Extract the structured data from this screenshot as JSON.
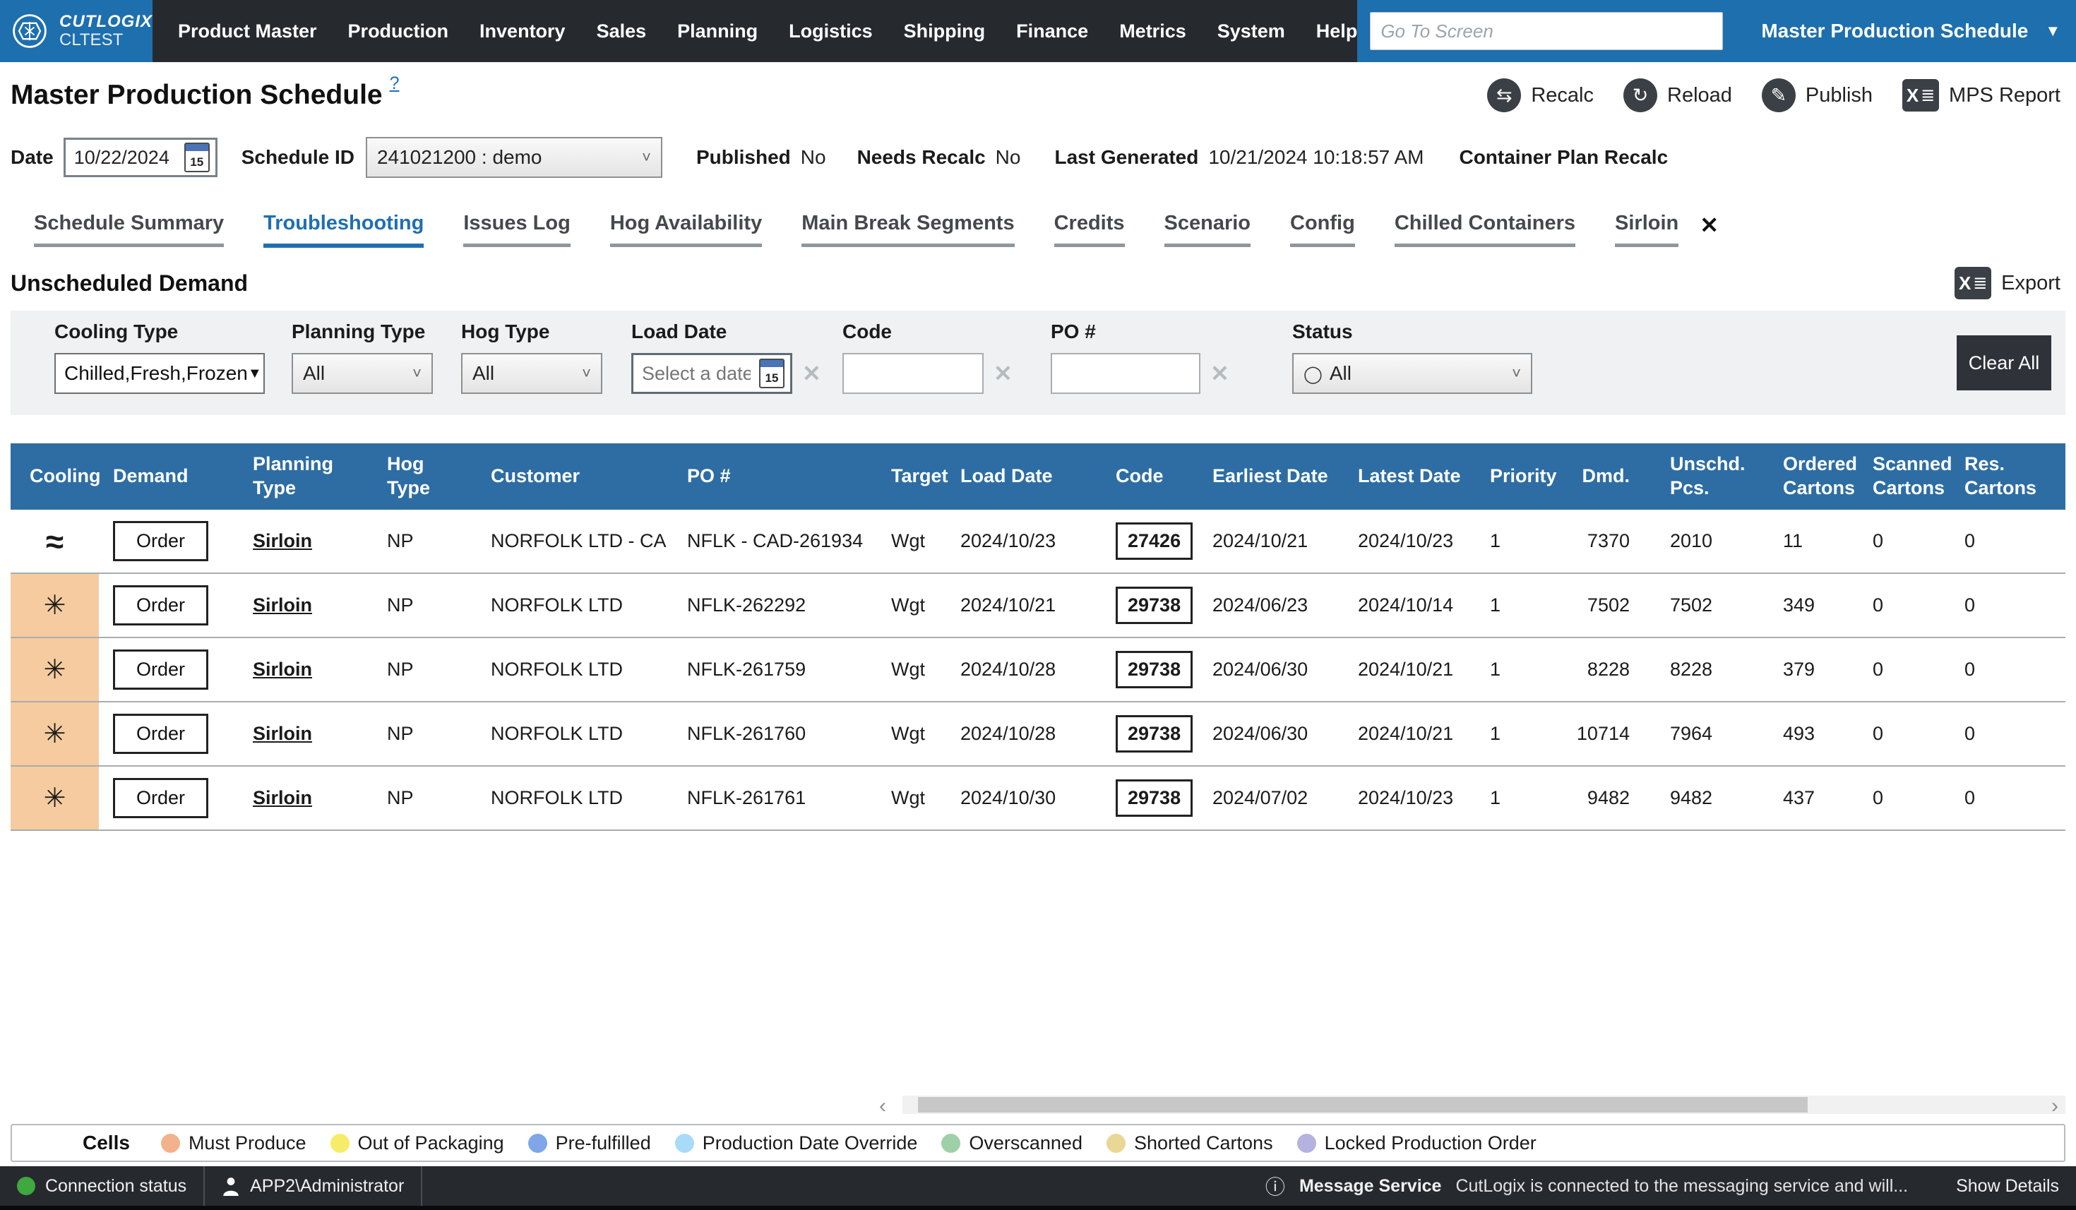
{
  "colors": {
    "accent_blue": "#1d6fae",
    "table_header_blue": "#2d6da3",
    "nav_dark": "#26292e",
    "must_produce_row": "#f6cb9f"
  },
  "icons": {
    "close": "✕",
    "back": "←",
    "forward": "→",
    "star": "☆",
    "caret_down": "▼",
    "caret_small": "˅",
    "scroll_left": "‹",
    "scroll_right": "›",
    "info": "ⓘ",
    "help": "?",
    "excel_x": "X",
    "excel_lines": "≣",
    "recalc": "⇆",
    "reload": "↻",
    "publish": "✎",
    "chilled": "≈",
    "frozen": "✳",
    "status_circle": "◯"
  },
  "nav": {
    "brand_name": "CUTLOGIX",
    "brand_env": "CLTEST",
    "items": [
      "Product Master",
      "Production",
      "Inventory",
      "Sales",
      "Planning",
      "Logistics",
      "Shipping",
      "Finance",
      "Metrics",
      "System",
      "Help"
    ],
    "goto_placeholder": "Go To Screen",
    "screen_selector": "Master Production Schedule"
  },
  "header": {
    "title": "Master Production Schedule",
    "actions": [
      {
        "label": "Recalc",
        "icon": "recalc"
      },
      {
        "label": "Reload",
        "icon": "reload"
      },
      {
        "label": "Publish",
        "icon": "publish"
      },
      {
        "label": "MPS Report",
        "icon": "excel"
      }
    ]
  },
  "schedule_bar": {
    "date_label": "Date",
    "date_value": "10/22/2024",
    "calendar_day": "15",
    "schedule_id_label": "Schedule ID",
    "schedule_id_value": "241021200 :  demo",
    "published_label": "Published",
    "published_value": "No",
    "needs_recalc_label": "Needs Recalc",
    "needs_recalc_value": "No",
    "last_generated_label": "Last Generated",
    "last_generated_value": "10/21/2024 10:18:57 AM",
    "container_plan_label": "Container Plan Recalc"
  },
  "tabs": [
    {
      "label": "Schedule Summary"
    },
    {
      "label": "Troubleshooting",
      "active": true
    },
    {
      "label": "Issues Log"
    },
    {
      "label": "Hog Availability"
    },
    {
      "label": "Main Break Segments"
    },
    {
      "label": "Credits"
    },
    {
      "label": "Scenario"
    },
    {
      "label": "Config"
    },
    {
      "label": "Chilled Containers"
    },
    {
      "label": "Sirloin",
      "closable": true
    }
  ],
  "section": {
    "title": "Unscheduled Demand",
    "export_label": "Export"
  },
  "filters": {
    "cooling_type": {
      "label": "Cooling Type",
      "value": "Chilled,Fresh,Frozen"
    },
    "planning_type": {
      "label": "Planning Type",
      "value": "All"
    },
    "hog_type": {
      "label": "Hog Type",
      "value": "All"
    },
    "load_date": {
      "label": "Load Date",
      "placeholder": "Select a date",
      "calendar_day": "15"
    },
    "code": {
      "label": "Code",
      "value": ""
    },
    "po": {
      "label": "PO #",
      "value": ""
    },
    "status": {
      "label": "Status",
      "value": "All"
    },
    "clear_all_label": "Clear All"
  },
  "table": {
    "columns": [
      "Cooling",
      "Demand",
      "Planning Type",
      "Hog Type",
      "Customer",
      "PO #",
      "Target",
      "Load Date",
      "Code",
      "Earliest Date",
      "Latest Date",
      "Priority",
      "Dmd.",
      "Unschd.\nPcs.",
      "Ordered\nCartons",
      "Scanned\nCartons",
      "Res.\nCartons"
    ],
    "rows": [
      {
        "cooling": "chilled",
        "must_produce": false,
        "demand": "Order",
        "planning_type": "Sirloin",
        "hog_type": "NP",
        "customer": "NORFOLK LTD - CA",
        "po": "NFLK - CAD-261934",
        "target": "Wgt",
        "load_date": "2024/10/23",
        "code": "27426",
        "earliest_date": "2024/10/21",
        "latest_date": "2024/10/23",
        "priority": "1",
        "dmd": "7370",
        "unschd_pcs": "2010",
        "ordered_cartons": "11",
        "scanned_cartons": "0",
        "res_cartons": "0"
      },
      {
        "cooling": "frozen",
        "must_produce": true,
        "demand": "Order",
        "planning_type": "Sirloin",
        "hog_type": "NP",
        "customer": "NORFOLK LTD",
        "po": "NFLK-262292",
        "target": "Wgt",
        "load_date": "2024/10/21",
        "code": "29738",
        "earliest_date": "2024/06/23",
        "latest_date": "2024/10/14",
        "priority": "1",
        "dmd": "7502",
        "unschd_pcs": "7502",
        "ordered_cartons": "349",
        "scanned_cartons": "0",
        "res_cartons": "0"
      },
      {
        "cooling": "frozen",
        "must_produce": true,
        "demand": "Order",
        "planning_type": "Sirloin",
        "hog_type": "NP",
        "customer": "NORFOLK LTD",
        "po": "NFLK-261759",
        "target": "Wgt",
        "load_date": "2024/10/28",
        "code": "29738",
        "earliest_date": "2024/06/30",
        "latest_date": "2024/10/21",
        "priority": "1",
        "dmd": "8228",
        "unschd_pcs": "8228",
        "ordered_cartons": "379",
        "scanned_cartons": "0",
        "res_cartons": "0"
      },
      {
        "cooling": "frozen",
        "must_produce": true,
        "demand": "Order",
        "planning_type": "Sirloin",
        "hog_type": "NP",
        "customer": "NORFOLK LTD",
        "po": "NFLK-261760",
        "target": "Wgt",
        "load_date": "2024/10/28",
        "code": "29738",
        "earliest_date": "2024/06/30",
        "latest_date": "2024/10/21",
        "priority": "1",
        "dmd": "10714",
        "unschd_pcs": "7964",
        "ordered_cartons": "493",
        "scanned_cartons": "0",
        "res_cartons": "0"
      },
      {
        "cooling": "frozen",
        "must_produce": true,
        "demand": "Order",
        "planning_type": "Sirloin",
        "hog_type": "NP",
        "customer": "NORFOLK LTD",
        "po": "NFLK-261761",
        "target": "Wgt",
        "load_date": "2024/10/30",
        "code": "29738",
        "earliest_date": "2024/07/02",
        "latest_date": "2024/10/23",
        "priority": "1",
        "dmd": "9482",
        "unschd_pcs": "9482",
        "ordered_cartons": "437",
        "scanned_cartons": "0",
        "res_cartons": "0"
      }
    ]
  },
  "legend": {
    "label": "Cells",
    "items": [
      {
        "label": "Must Produce",
        "color": "#f2b28c"
      },
      {
        "label": "Out of Packaging",
        "color": "#f6ec67"
      },
      {
        "label": "Pre-fulfilled",
        "color": "#7fa6e9"
      },
      {
        "label": "Production Date Override",
        "color": "#a8dbf7"
      },
      {
        "label": "Overscanned",
        "color": "#9ed0a8"
      },
      {
        "label": "Shorted Cartons",
        "color": "#e9d795"
      },
      {
        "label": "Locked Production Order",
        "color": "#b5b2df"
      }
    ]
  },
  "status_bar": {
    "connection": "Connection status",
    "user": "APP2\\Administrator",
    "message_service_label": "Message Service",
    "message": "CutLogix is connected to the messaging service and will...",
    "show_details": "Show Details"
  }
}
